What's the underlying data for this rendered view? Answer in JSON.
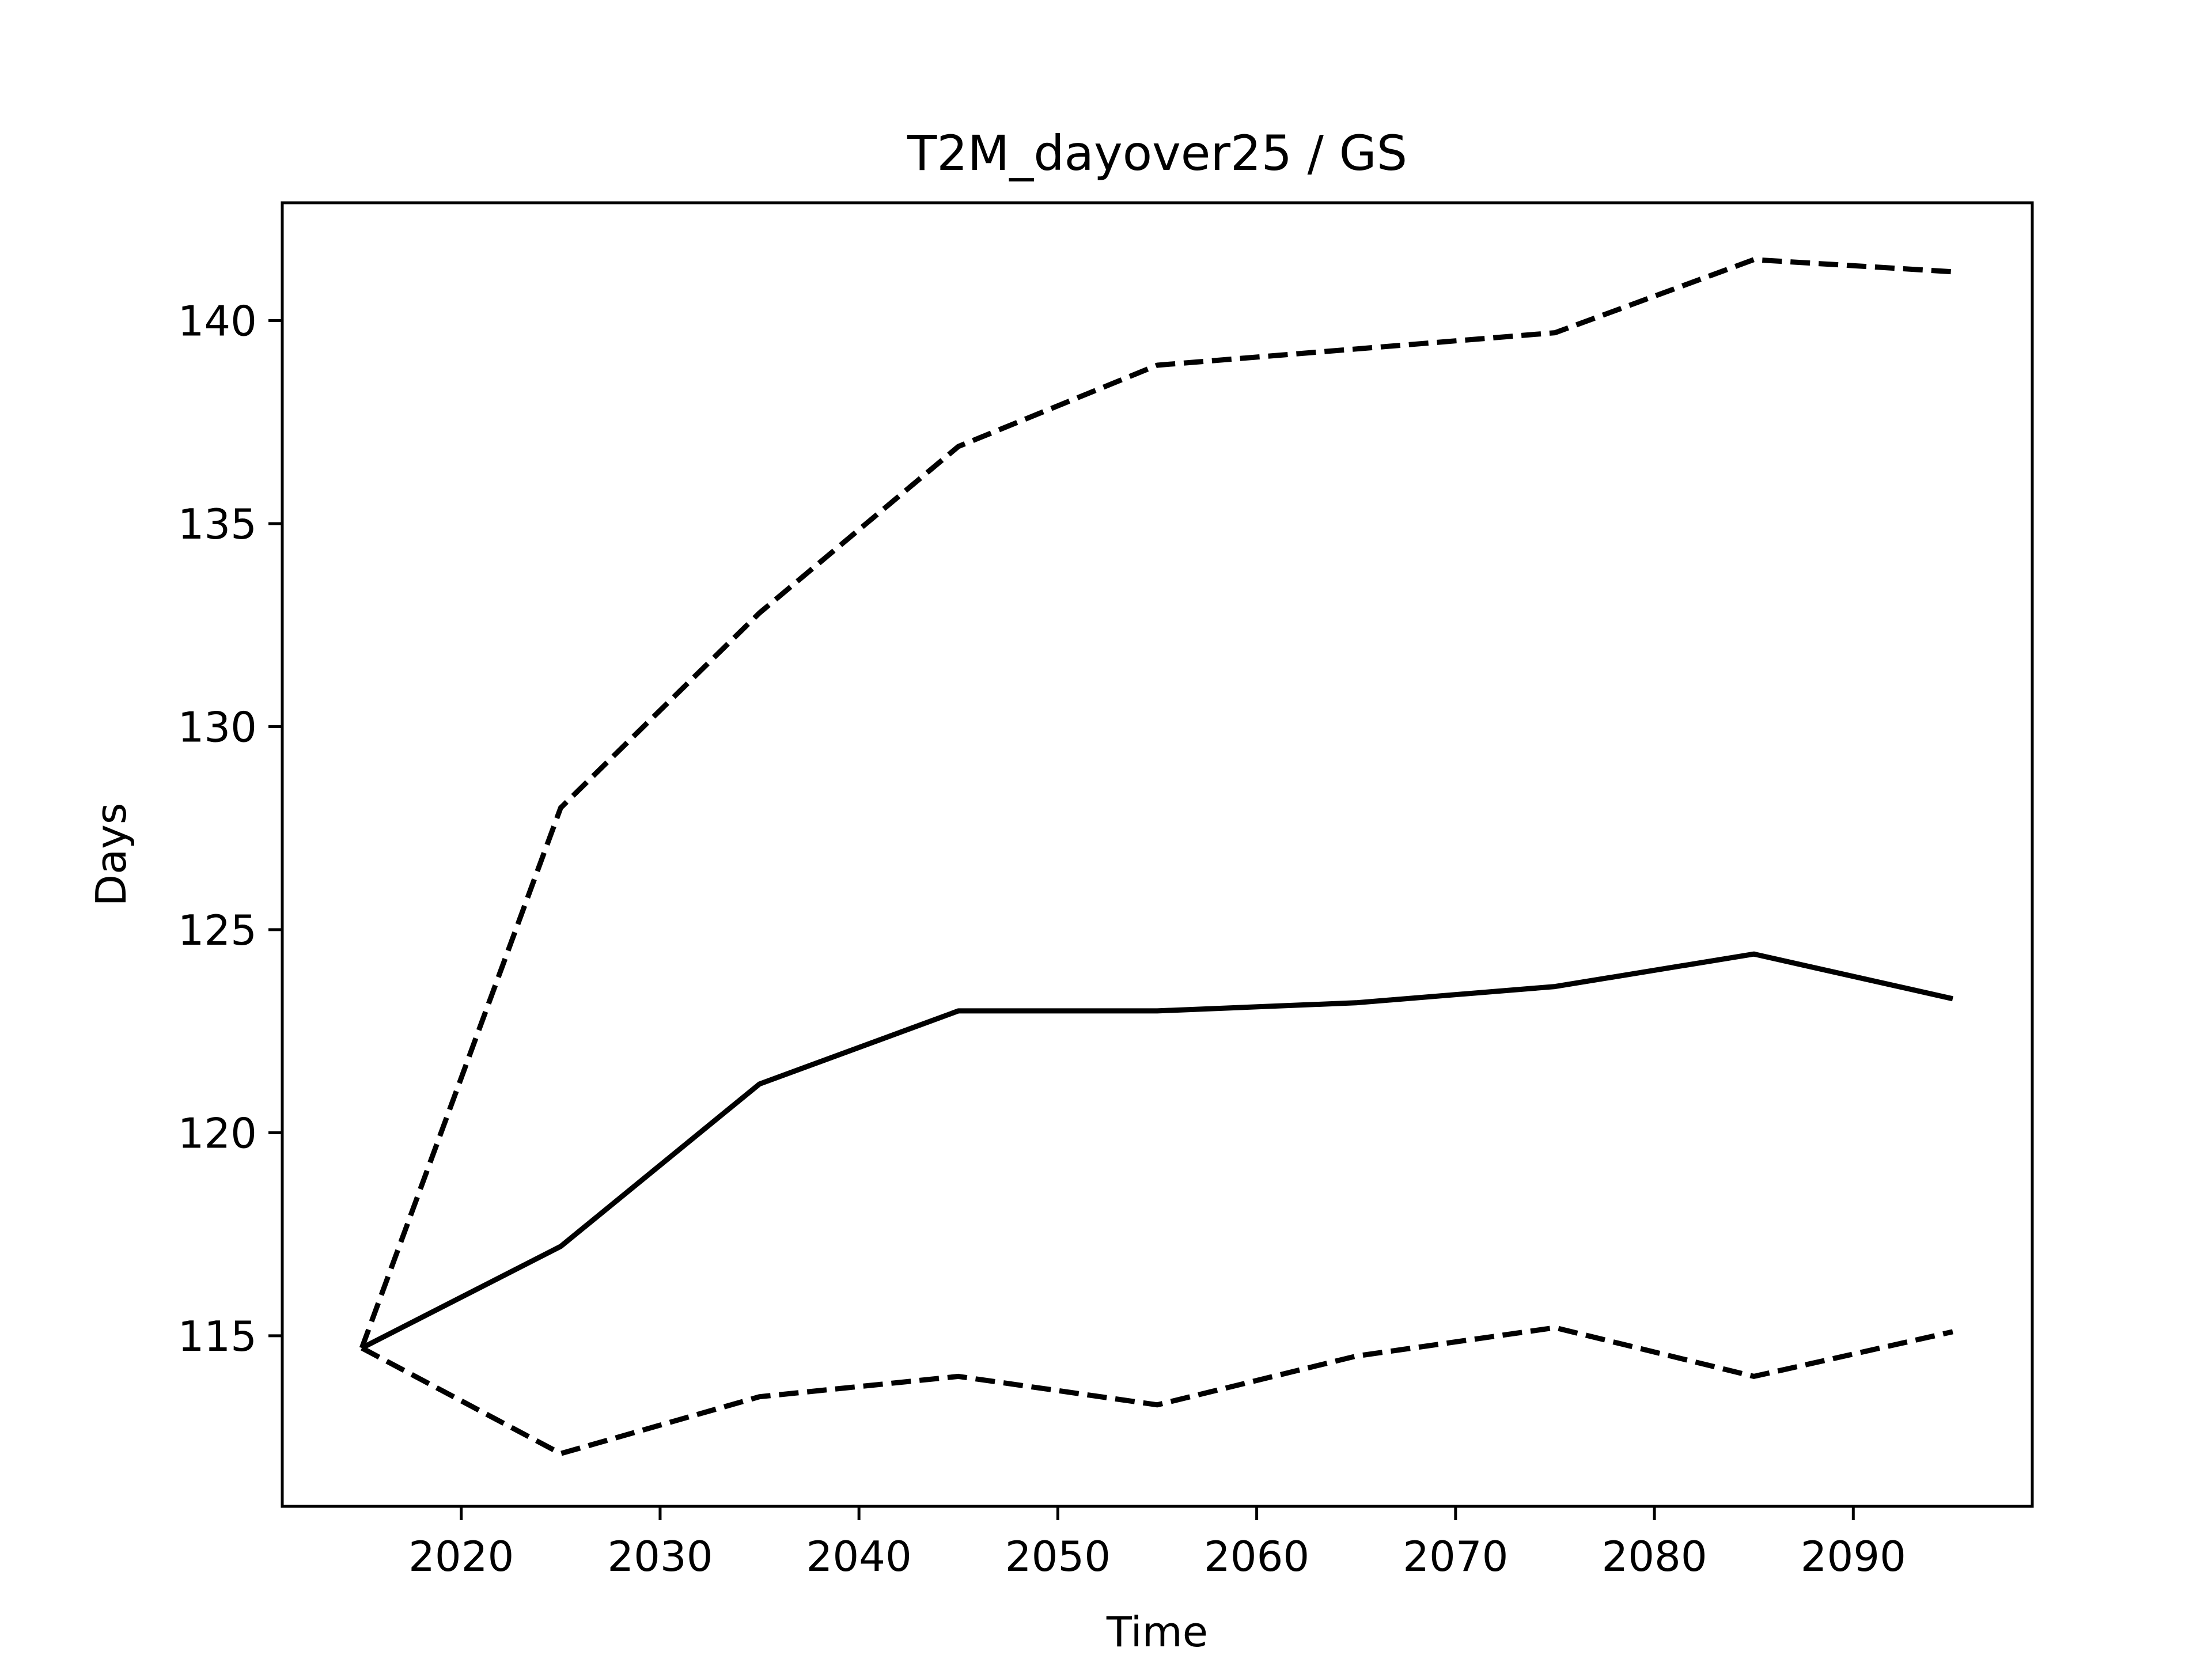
{
  "chart_data": {
    "type": "line",
    "title": "T2M_dayover25 / GS",
    "xlabel": "Time",
    "ylabel": "Days",
    "xlim": [
      2011,
      2099
    ],
    "ylim": [
      110.8,
      142.9
    ],
    "grid": false,
    "legend": "none",
    "xticks": [
      2020,
      2030,
      2040,
      2050,
      2060,
      2070,
      2080,
      2090
    ],
    "yticks": [
      115,
      120,
      125,
      130,
      135,
      140
    ],
    "xtick_labels": [
      "2020",
      "2030",
      "2040",
      "2050",
      "2060",
      "2070",
      "2080",
      "2090"
    ],
    "ytick_labels": [
      "115",
      "120",
      "125",
      "130",
      "135",
      "140"
    ],
    "x": [
      2015,
      2025,
      2035,
      2045,
      2055,
      2065,
      2075,
      2085,
      2095
    ],
    "series": [
      {
        "style": "dashed",
        "color": "#000000",
        "values": [
          114.7,
          128.0,
          132.8,
          136.9,
          138.9,
          139.3,
          139.7,
          141.5,
          141.2
        ]
      },
      {
        "style": "solid",
        "color": "#000000",
        "values": [
          114.7,
          117.2,
          121.2,
          123.0,
          123.0,
          123.2,
          123.6,
          124.4,
          123.3
        ]
      },
      {
        "style": "dashed",
        "color": "#000000",
        "values": [
          114.7,
          112.1,
          113.5,
          114.0,
          113.3,
          114.5,
          115.2,
          114.0,
          115.1
        ]
      }
    ]
  }
}
